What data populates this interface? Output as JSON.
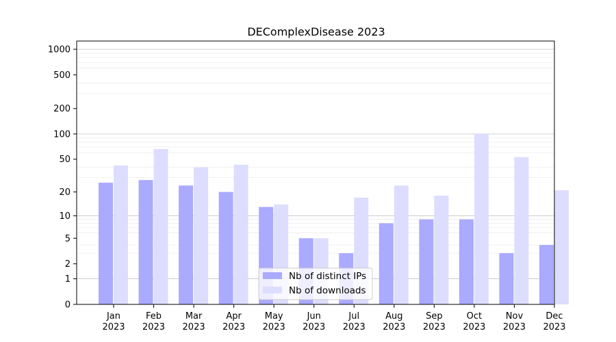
{
  "chart_data": {
    "type": "bar",
    "title": "DEComplexDisease 2023",
    "xlabel": "",
    "ylabel": "",
    "yscale": "log(1+y)",
    "ylim": [
      0,
      1250
    ],
    "yticks": [
      0,
      1,
      2,
      5,
      10,
      20,
      50,
      100,
      200,
      500,
      1000
    ],
    "grid": true,
    "legend_position": "bottom-center",
    "categories": [
      [
        "Jan",
        "2023"
      ],
      [
        "Feb",
        "2023"
      ],
      [
        "Mar",
        "2023"
      ],
      [
        "Apr",
        "2023"
      ],
      [
        "May",
        "2023"
      ],
      [
        "Jun",
        "2023"
      ],
      [
        "Jul",
        "2023"
      ],
      [
        "Aug",
        "2023"
      ],
      [
        "Sep",
        "2023"
      ],
      [
        "Oct",
        "2023"
      ],
      [
        "Nov",
        "2023"
      ],
      [
        "Dec",
        "2023"
      ]
    ],
    "series": [
      {
        "name": "Nb of distinct IPs",
        "color": "#aaaaff",
        "values": [
          26,
          28,
          24,
          20,
          13,
          5,
          3,
          8,
          9,
          9,
          3,
          4
        ]
      },
      {
        "name": "Nb of downloads",
        "color": "#ddddff",
        "values": [
          42,
          66,
          40,
          43,
          14,
          5,
          17,
          24,
          18,
          100,
          53,
          21
        ]
      }
    ]
  }
}
